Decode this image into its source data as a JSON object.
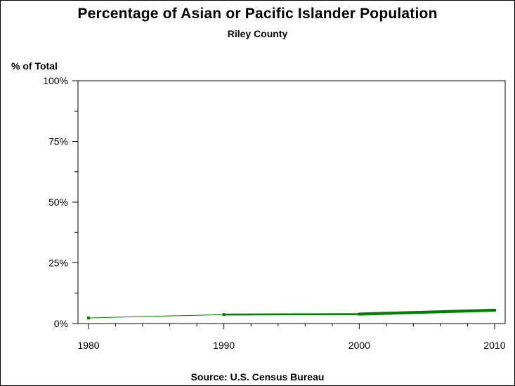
{
  "chart_data": {
    "type": "line",
    "title": "Percentage of Asian or Pacific Islander Population",
    "subtitle": "Riley County",
    "ylabel": "% of Total",
    "xlabel": "",
    "source": "Source: U.S. Census Bureau",
    "x": [
      1980,
      1990,
      2000,
      2010
    ],
    "x_ticks": [
      "1980",
      "1990",
      "2000",
      "2010"
    ],
    "xlim": [
      1980,
      2010
    ],
    "y_ticks": [
      "0%",
      "25%",
      "50%",
      "75%",
      "100%"
    ],
    "ylim": [
      0,
      100
    ],
    "grid": false,
    "series": [
      {
        "values": [
          2.3,
          3.7,
          3.9,
          5.5
        ],
        "color": "#007f00"
      }
    ]
  }
}
